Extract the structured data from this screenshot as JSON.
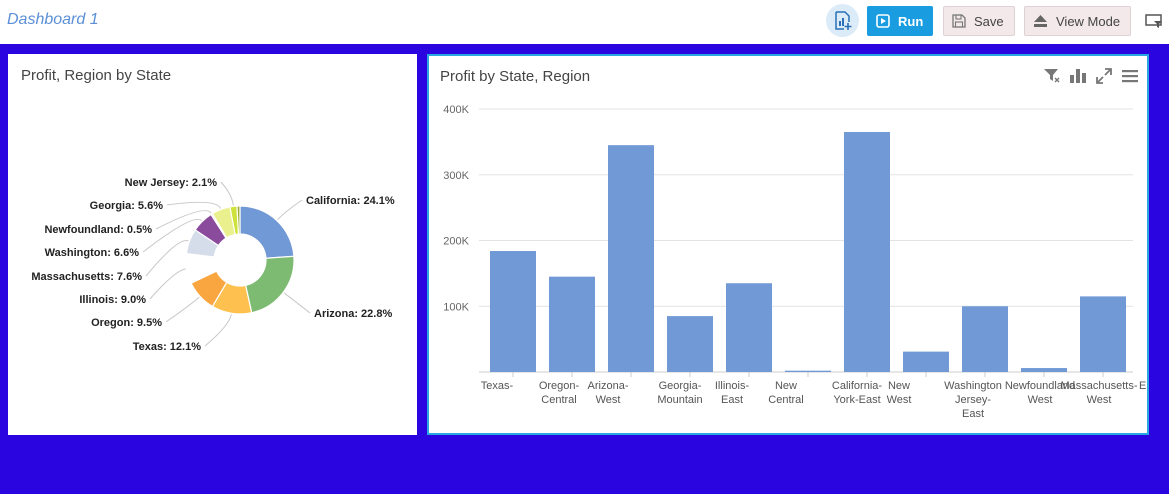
{
  "header": {
    "dashboard_title": "Dashboard 1",
    "run_label": "Run",
    "save_label": "Save",
    "view_mode_label": "View Mode",
    "accent_color": "#1a9ce0",
    "background_color": "#2b05e0"
  },
  "chart_data": [
    {
      "type": "pie",
      "variant": "donut",
      "title": "Profit, Region by State",
      "slices": [
        {
          "label": "California",
          "value": 24.1,
          "color": "#7199d6"
        },
        {
          "label": "Arizona",
          "value": 22.8,
          "color": "#7dbb72"
        },
        {
          "label": "Texas",
          "value": 12.1,
          "color": "#fec14f"
        },
        {
          "label": "Oregon",
          "value": 9.5,
          "color": "#f9a540"
        },
        {
          "label": "Illinois",
          "value": 9.0,
          "color": "#ffffff"
        },
        {
          "label": "Massachusetts",
          "value": 7.6,
          "color": "#d5dcea"
        },
        {
          "label": "Washington",
          "value": 6.6,
          "color": "#8a4b9c"
        },
        {
          "label": "Newfoundland",
          "value": 0.5,
          "color": "#f2dad5"
        },
        {
          "label": "Georgia",
          "value": 5.6,
          "color": "#eaf08d"
        },
        {
          "label": "New Jersey",
          "value": 2.1,
          "color": "#cfe23b"
        },
        {
          "label": "",
          "value": 0.9,
          "color": "#9eab32"
        }
      ],
      "label_texts": [
        "California: 24.1%",
        "Arizona: 22.8%",
        "Texas: 12.1%",
        "Oregon: 9.5%",
        "Illinois: 9.0%",
        "Massachusetts: 7.6%",
        "Washington: 6.6%",
        "Newfoundland: 0.5%",
        "Georgia: 5.6%",
        "New Jersey: 2.1%"
      ]
    },
    {
      "type": "bar",
      "title": "Profit by State, Region",
      "bar_color": "#7199d6",
      "categories": [
        "Texas-Central",
        "Oregon-West",
        "Arizona-Mountain",
        "Georgia-East",
        "Illinois-Central",
        "New York-East",
        "California-West",
        "New Jersey-East",
        "Washington-West",
        "Newfoundland-West",
        "Massachusetts-East"
      ],
      "tick_lines": [
        [
          "Texas-"
        ],
        [
          "Oregon-",
          "Central"
        ],
        [
          "Arizona-",
          "West"
        ],
        [
          "Georgia-",
          "Mountain"
        ],
        [
          "Illinois-",
          "East"
        ],
        [
          "New",
          "Central"
        ],
        [
          "California-",
          "York-East"
        ],
        [
          "New",
          "West"
        ],
        [
          "Washington",
          "Jersey-",
          "East"
        ],
        [
          "Newfoundland",
          "West"
        ],
        [
          "Massachusetts-",
          "West"
        ],
        [
          "East"
        ],
        [
          "Eas"
        ]
      ],
      "values": [
        184000,
        145000,
        345000,
        85000,
        135000,
        2000,
        365000,
        31000,
        100000,
        6000,
        115000
      ],
      "ylim": [
        0,
        400000
      ],
      "yticks": [
        {
          "value": 100000,
          "label": "100K"
        },
        {
          "value": 200000,
          "label": "200K"
        },
        {
          "value": 300000,
          "label": "300K"
        },
        {
          "value": 400000,
          "label": "400K"
        }
      ],
      "grid": true
    }
  ]
}
